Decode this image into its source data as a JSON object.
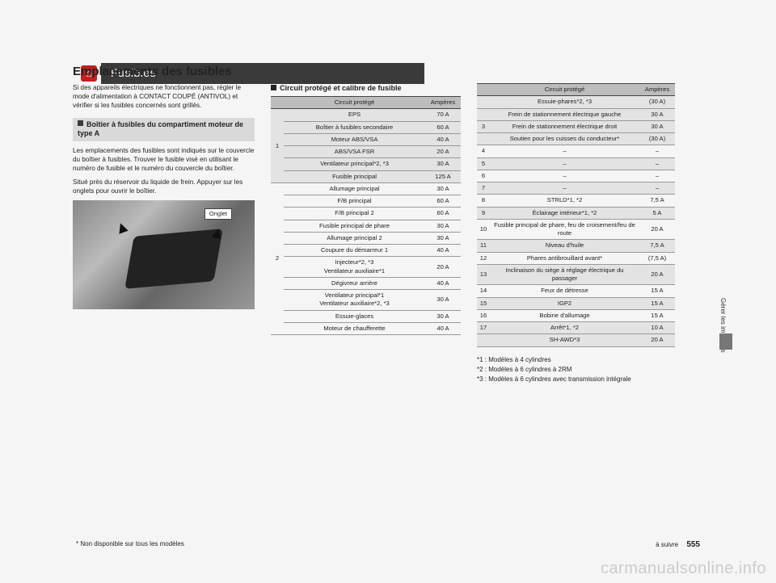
{
  "header": {
    "home_glyph": "⌂",
    "title": "Fusibles"
  },
  "section_title": "Emplacements des fusibles",
  "intro": "Si des appareils électriques ne fonctionnent pas, régler le mode d'alimentation à CONTACT COUPÉ (ANTIVOL) et vérifier si les fusibles concernés sont grillés.",
  "sub_box": "Boîtier à fusibles du compartiment moteur de type A",
  "para1": "Les emplacements des fusibles sont indiqués sur le couvercle du boîtier à fusibles. Trouver le fusible visé en utilisant le numéro de fusible et le numéro du couvercle du boîtier.",
  "para2": "Situé près du réservoir du liquide de frein. Appuyer sur les onglets pour ouvrir le boîtier.",
  "photo_tag": "Onglet",
  "table_caption": "Circuit protégé et calibre de fusible",
  "th": {
    "circuit": "Circuit protégé",
    "amp": "Ampères"
  },
  "t1": {
    "group1": [
      {
        "label": "EPS",
        "amp": "70 A"
      },
      {
        "label": "Boîtier à fusibles secondaire",
        "amp": "60 A"
      },
      {
        "label": "Moteur ABS/VSA",
        "amp": "40 A"
      },
      {
        "label": "ABS/VSA FSR",
        "amp": "20 A"
      },
      {
        "label": "Ventilateur principal*2, *3",
        "amp": "30 A"
      },
      {
        "label": "Fusible principal",
        "amp": "125 A"
      }
    ],
    "group2": [
      {
        "label": "Allumage principal",
        "amp": "30 A"
      },
      {
        "label": "F/B principal",
        "amp": "60 A"
      },
      {
        "label": "F/B principal 2",
        "amp": "60 A"
      },
      {
        "label": "Fusible principal de phare",
        "amp": "30 A"
      },
      {
        "label": "Allumage principal 2",
        "amp": "30 A"
      },
      {
        "label": "Coupure du démarreur 1",
        "amp": "40 A"
      },
      {
        "label": "Injecteur*2, *3\nVentilateur auxiliaire*1",
        "amp": "20 A"
      },
      {
        "label": "Dégivreur arrière",
        "amp": "40 A"
      },
      {
        "label": "Ventilateur principal*1\nVentilateur auxiliaire*2, *3",
        "amp": "30 A"
      },
      {
        "label": "Essuie-glaces",
        "amp": "30 A"
      },
      {
        "label": "Moteur de chaufferette",
        "amp": "40 A"
      }
    ]
  },
  "t2": [
    {
      "n": "",
      "label": "Essuie-phares*2, *3",
      "amp": "(30 A)",
      "shade": true,
      "group": "3"
    },
    {
      "n": "",
      "label": "Frein de stationnement électrique gauche",
      "amp": "30 A",
      "shade": true
    },
    {
      "n": "3",
      "label": "Frein de stationnement électrique droit",
      "amp": "30 A",
      "shade": true
    },
    {
      "n": "",
      "label": "Soutien pour les cuisses du conducteur*",
      "amp": "(30 A)",
      "shade": true
    },
    {
      "n": "4",
      "label": "–",
      "amp": "–"
    },
    {
      "n": "5",
      "label": "–",
      "amp": "–",
      "shade": true
    },
    {
      "n": "6",
      "label": "–",
      "amp": "–"
    },
    {
      "n": "7",
      "label": "–",
      "amp": "–",
      "shade": true
    },
    {
      "n": "8",
      "label": "STRLD*1, *2",
      "amp": "7,5 A"
    },
    {
      "n": "9",
      "label": "Éclairage intérieur*1, *2",
      "amp": "5 A",
      "shade": true
    },
    {
      "n": "10",
      "label": "Fusible principal de phare, feu de croisement/feu de route",
      "amp": "20 A"
    },
    {
      "n": "11",
      "label": "Niveau d'huile",
      "amp": "7,5 A",
      "shade": true
    },
    {
      "n": "12",
      "label": "Phares antibrouillard avant*",
      "amp": "(7,5 A)"
    },
    {
      "n": "13",
      "label": "Inclinaison du siège à réglage électrique du passager",
      "amp": "20 A",
      "shade": true
    },
    {
      "n": "14",
      "label": "Feux de détresse",
      "amp": "15 A"
    },
    {
      "n": "15",
      "label": "IGP2",
      "amp": "15 A",
      "shade": true
    },
    {
      "n": "16",
      "label": "Bobine d'allumage",
      "amp": "15 A"
    },
    {
      "n": "17",
      "label": "Arrêt*1, *2",
      "amp": "10 A",
      "shade": true
    },
    {
      "n": "",
      "label": "SH-AWD*3",
      "amp": "20 A",
      "shade": true
    }
  ],
  "notes": [
    "*1 : Modèles à 4 cylindres",
    "*2 : Modèles à 6 cylindres à 2RM",
    "*3 : Modèles à 6 cylindres avec transmission intégrale"
  ],
  "side_tab": "Gérer les imprévus",
  "footer": {
    "left": "* Non disponible sur tous les modèles",
    "right_label": "à suivre",
    "page": "555"
  },
  "watermark": "carmanualsonline.info"
}
